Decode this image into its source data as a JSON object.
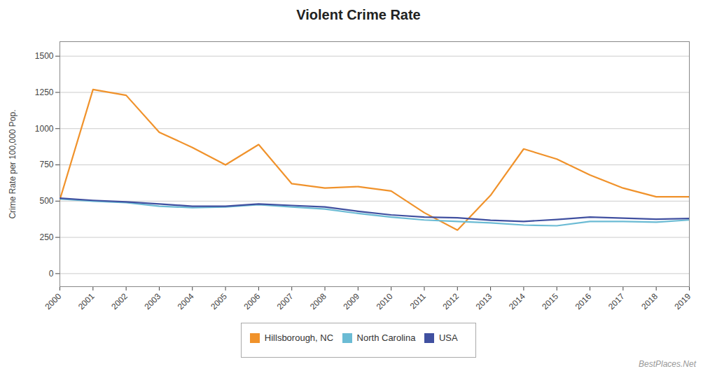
{
  "chart_data": {
    "type": "line",
    "title": "Violent Crime Rate",
    "ylabel": "Crime Rate per 100,000 Pop.",
    "x": [
      2000,
      2001,
      2002,
      2003,
      2004,
      2005,
      2006,
      2007,
      2008,
      2009,
      2010,
      2011,
      2012,
      2013,
      2014,
      2015,
      2016,
      2017,
      2018,
      2019
    ],
    "series": [
      {
        "name": "Hillsborough, NC",
        "color": "#F0922B",
        "values": [
          510,
          1270,
          1230,
          975,
          870,
          750,
          890,
          620,
          590,
          600,
          570,
          420,
          300,
          540,
          860,
          790,
          680,
          590,
          530,
          530
        ]
      },
      {
        "name": "North Carolina",
        "color": "#6BBBD4",
        "values": [
          515,
          500,
          490,
          465,
          455,
          460,
          475,
          460,
          445,
          415,
          390,
          370,
          360,
          350,
          335,
          330,
          360,
          360,
          355,
          370
        ]
      },
      {
        "name": "USA",
        "color": "#4050A0",
        "values": [
          520,
          505,
          495,
          480,
          465,
          465,
          480,
          470,
          460,
          430,
          405,
          390,
          385,
          368,
          360,
          373,
          390,
          383,
          375,
          380
        ]
      }
    ],
    "xlim": [
      2000,
      2019
    ],
    "xticks": [
      2000,
      2001,
      2002,
      2003,
      2004,
      2005,
      2006,
      2007,
      2008,
      2009,
      2010,
      2011,
      2012,
      2013,
      2014,
      2015,
      2016,
      2017,
      2018,
      2019
    ],
    "ylim": [
      -90,
      1600
    ],
    "yticks": [
      0,
      250,
      500,
      750,
      1000,
      1250,
      1500
    ],
    "grid": true,
    "legend": "bottom",
    "annotation": "BestPlaces.Net"
  }
}
